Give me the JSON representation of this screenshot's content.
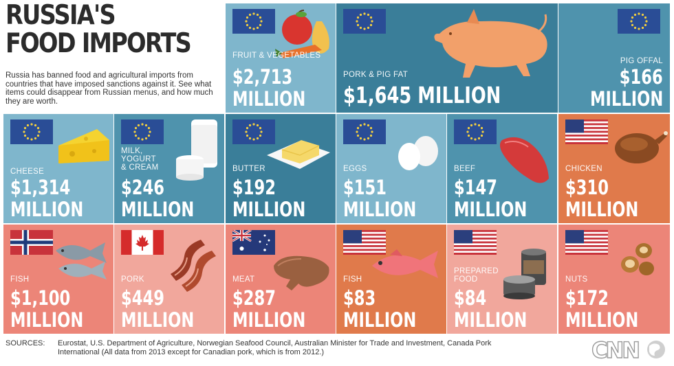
{
  "header": {
    "title_line1": "RUSSIA'S",
    "title_line2": "FOOD IMPORTS",
    "description": "Russia has banned food and agricultural imports from countries that have imposed sanctions against it. See what items could disappear from Russian menus, and how much they are worth."
  },
  "colors": {
    "blue_light": "#7fb6cc",
    "blue_mid": "#4f93ad",
    "blue_dark": "#3a7e99",
    "orange": "#e07a4b",
    "salmon": "#ec8578",
    "pink_light": "#f1a79c",
    "eu_flag": "#2a4d96"
  },
  "tiles": {
    "fruit": {
      "label": "FRUIT & VEGETABLES",
      "value": "$2,713",
      "unit": "MILLION",
      "flag": "eu-flag-icon"
    },
    "pork_fat": {
      "label": "PORK & PIG FAT",
      "value": "$1,645 MILLION",
      "flag": "eu-flag-icon"
    },
    "pig_offal": {
      "label": "PIG OFFAL",
      "value": "$166",
      "unit": "MILLION",
      "flag": "eu-flag-icon"
    },
    "cheese": {
      "label": "CHEESE",
      "value": "$1,314",
      "unit": "MILLION",
      "flag": "eu-flag-icon"
    },
    "milk": {
      "label": "MILK,\nYOGURT\n& CREAM",
      "value": "$246",
      "unit": "MILLION",
      "flag": "eu-flag-icon"
    },
    "butter": {
      "label": "BUTTER",
      "value": "$192",
      "unit": "MILLION",
      "flag": "eu-flag-icon"
    },
    "eggs": {
      "label": "EGGS",
      "value": "$151",
      "unit": "MILLION",
      "flag": "eu-flag-icon"
    },
    "beef": {
      "label": "BEEF",
      "value": "$147",
      "unit": "MILLION",
      "flag": "eu-flag-icon"
    },
    "chicken": {
      "label": "CHICKEN",
      "value": "$310",
      "unit": "MILLION",
      "flag": "us-flag-icon"
    },
    "fish_no": {
      "label": "FISH",
      "value": "$1,100",
      "unit": "MILLION",
      "flag": "norway-flag-icon"
    },
    "pork_ca": {
      "label": "PORK",
      "value": "$449",
      "unit": "MILLION",
      "flag": "canada-flag-icon"
    },
    "meat_au": {
      "label": "MEAT",
      "value": "$287",
      "unit": "MILLION",
      "flag": "australia-flag-icon"
    },
    "fish_us": {
      "label": "FISH",
      "value": "$83",
      "unit": "MILLION",
      "flag": "us-flag-icon"
    },
    "prepared": {
      "label": "PREPARED\nFOOD",
      "value": "$84",
      "unit": "MILLION",
      "flag": "us-flag-icon"
    },
    "nuts": {
      "label": "NUTS",
      "value": "$172",
      "unit": "MILLION",
      "flag": "us-flag-icon"
    }
  },
  "footer": {
    "sources_label": "SOURCES:",
    "sources_text": "Eurostat, U.S. Department of Agriculture, Norwegian Seafood Council, Australian Minister for Trade and Investment, Canada Pork International (All data from 2013 except for Canadian pork, which is from 2012.)",
    "logo": "CNN"
  }
}
